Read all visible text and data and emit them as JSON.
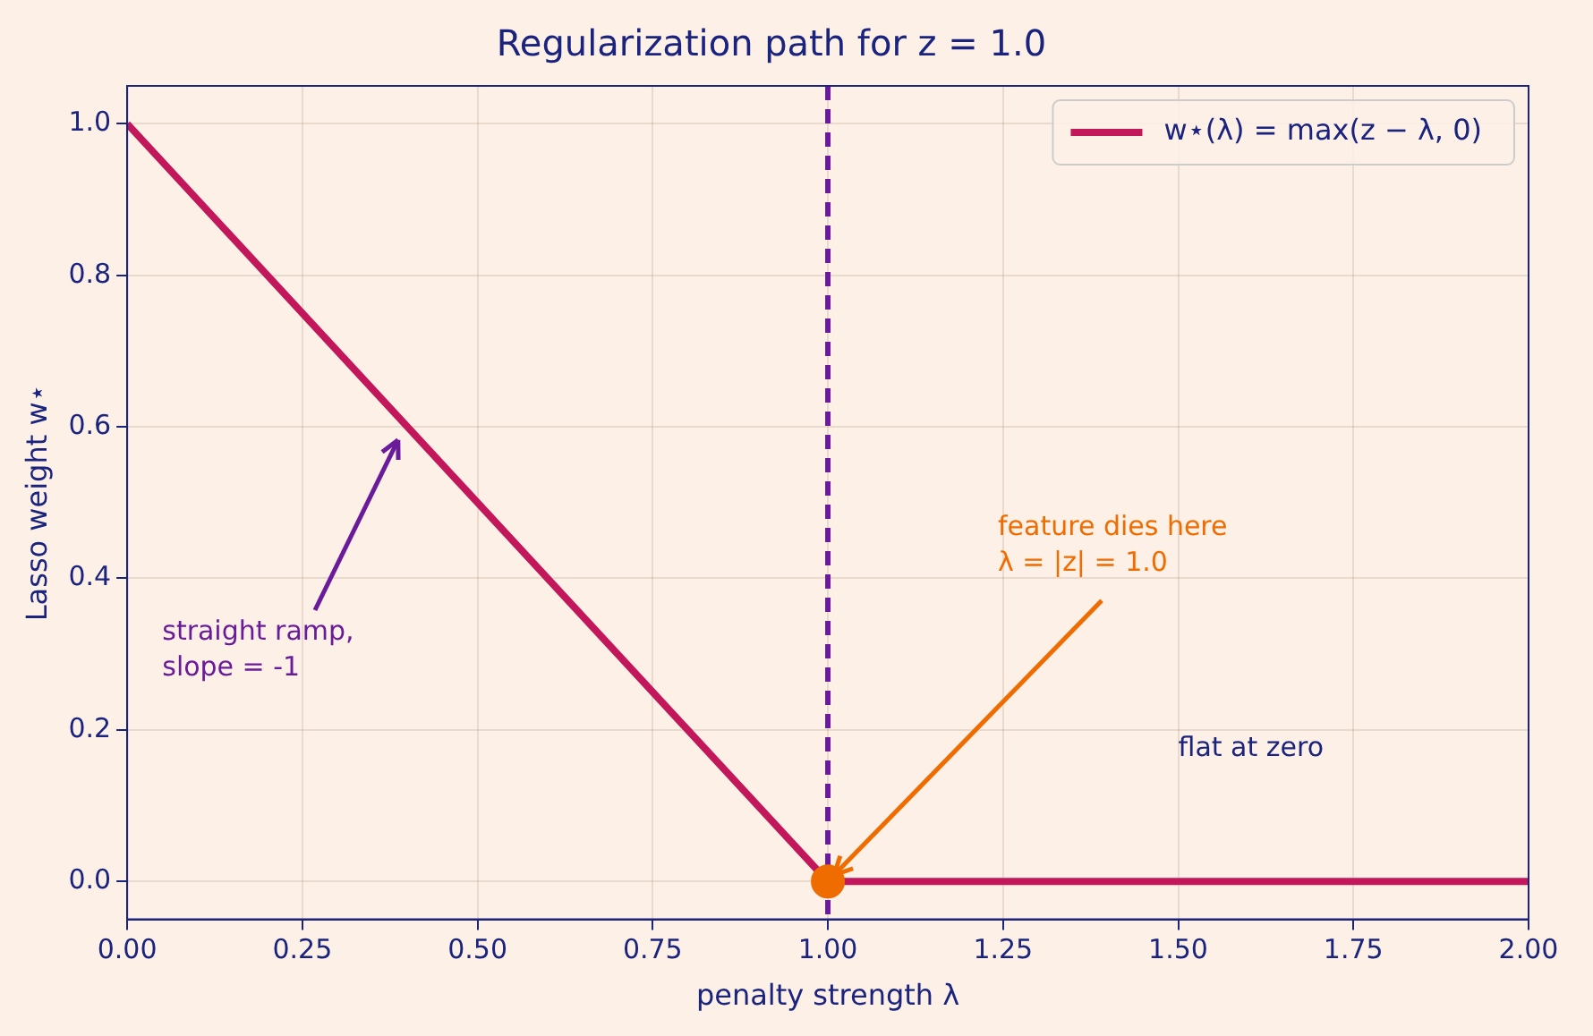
{
  "chart_data": {
    "type": "line",
    "title": "Regularization path for z = 1.0",
    "xlabel": "penalty strength λ",
    "ylabel": "Lasso weight w⋆",
    "xlim": [
      0,
      2
    ],
    "ylim": [
      -0.05,
      1.05
    ],
    "xticks": [
      {
        "value": 0,
        "label": "0.00"
      },
      {
        "value": 0.25,
        "label": "0.25"
      },
      {
        "value": 0.5,
        "label": "0.50"
      },
      {
        "value": 0.75,
        "label": "0.75"
      },
      {
        "value": 1,
        "label": "1.00"
      },
      {
        "value": 1.25,
        "label": "1.25"
      },
      {
        "value": 1.5,
        "label": "1.50"
      },
      {
        "value": 1.75,
        "label": "1.75"
      },
      {
        "value": 2,
        "label": "2.00"
      }
    ],
    "yticks": [
      {
        "value": 0,
        "label": "0.0"
      },
      {
        "value": 0.2,
        "label": "0.2"
      },
      {
        "value": 0.4,
        "label": "0.4"
      },
      {
        "value": 0.6,
        "label": "0.6"
      },
      {
        "value": 0.8,
        "label": "0.8"
      },
      {
        "value": 1,
        "label": "1.0"
      }
    ],
    "series": [
      {
        "name": "w⋆(λ) = max(z − λ, 0)",
        "color": "#c2185b",
        "x": [
          0,
          1,
          2
        ],
        "values": [
          1,
          0,
          0
        ],
        "line_style": "solid"
      },
      {
        "type": "scatter",
        "color": "#ef6c00",
        "x": [
          1
        ],
        "values": [
          0
        ],
        "marker": "circle"
      }
    ],
    "ref_lines": [
      {
        "axis": "x",
        "value": 1,
        "color": "#6a1b9a",
        "line_style": "dashed"
      }
    ],
    "annotations": [
      "straight ramp,\nslope = -1",
      {
        "text": "feature dies here\nλ = |z| = 1.0",
        "x": 1,
        "y": 0
      },
      "flat at zero"
    ],
    "grid": true,
    "legend": "top right"
  }
}
